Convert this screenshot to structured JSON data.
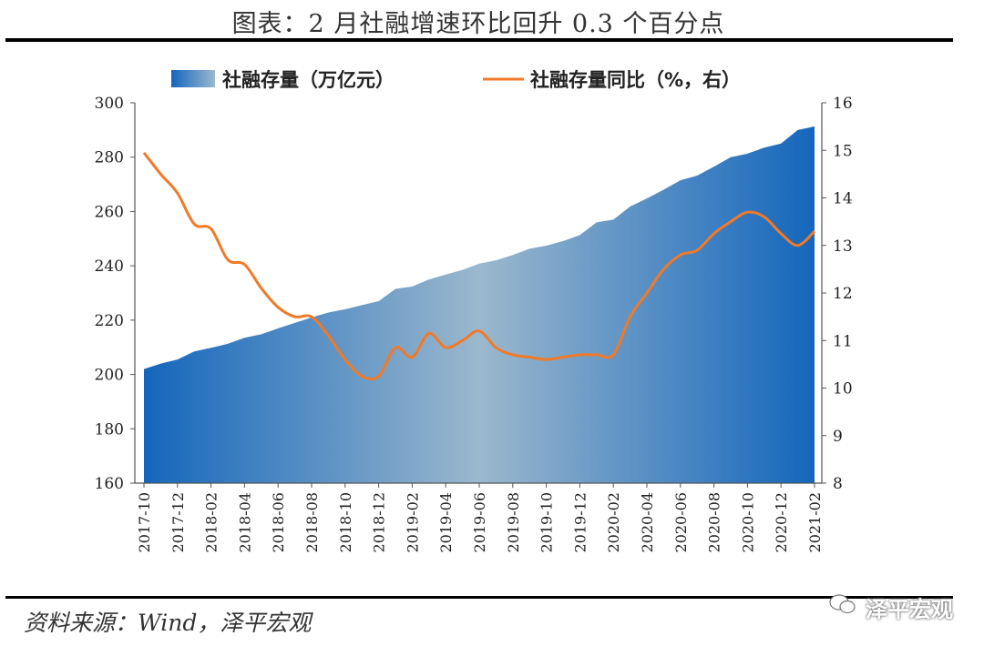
{
  "title": "图表：2 月社融增速环比回升 0.3 个百分点",
  "source": "资料来源：Wind，泽平宏观",
  "watermark": "泽平宏观",
  "chart_data": {
    "type": "area+line",
    "categories": [
      "2017-10",
      "2017-11",
      "2017-12",
      "2018-01",
      "2018-02",
      "2018-03",
      "2018-04",
      "2018-05",
      "2018-06",
      "2018-07",
      "2018-08",
      "2018-09",
      "2018-10",
      "2018-11",
      "2018-12",
      "2019-01",
      "2019-02",
      "2019-03",
      "2019-04",
      "2019-05",
      "2019-06",
      "2019-07",
      "2019-08",
      "2019-09",
      "2019-10",
      "2019-11",
      "2019-12",
      "2020-01",
      "2020-02",
      "2020-03",
      "2020-04",
      "2020-05",
      "2020-06",
      "2020-07",
      "2020-08",
      "2020-09",
      "2020-10",
      "2020-11",
      "2020-12",
      "2021-01",
      "2021-02"
    ],
    "x_tick_labels": [
      "2017-10",
      "2017-12",
      "2018-02",
      "2018-04",
      "2018-06",
      "2018-08",
      "2018-10",
      "2018-12",
      "2019-02",
      "2019-04",
      "2019-06",
      "2019-08",
      "2019-10",
      "2019-12",
      "2020-02",
      "2020-04",
      "2020-06",
      "2020-08",
      "2020-10",
      "2020-12",
      "2021-02"
    ],
    "series": [
      {
        "name": "社融存量（万亿元）",
        "axis": "left",
        "type": "area",
        "values": [
          202,
          204,
          205.5,
          208.5,
          209.8,
          211.3,
          213.5,
          214.8,
          217,
          219,
          221,
          222.8,
          224,
          225.5,
          227,
          231.5,
          232.4,
          235,
          236.8,
          238.5,
          240.8,
          242,
          244,
          246.3,
          247.4,
          249.1,
          251.3,
          256,
          257,
          261.8,
          264.8,
          268,
          271.5,
          273.2,
          276.5,
          280,
          281.3,
          283.5,
          285,
          290,
          291.3
        ]
      },
      {
        "name": "社融存量同比（%，右）",
        "axis": "right",
        "type": "line",
        "color": "#F07A28",
        "values": [
          14.95,
          14.5,
          14.1,
          13.45,
          13.35,
          12.7,
          12.6,
          12.1,
          11.7,
          11.5,
          11.5,
          11.1,
          10.6,
          10.25,
          10.25,
          10.85,
          10.65,
          11.15,
          10.85,
          11.0,
          11.2,
          10.85,
          10.7,
          10.65,
          10.6,
          10.65,
          10.7,
          10.7,
          10.7,
          11.5,
          12.0,
          12.5,
          12.8,
          12.9,
          13.25,
          13.5,
          13.7,
          13.6,
          13.25,
          13.0,
          13.3
        ]
      }
    ],
    "y_left": {
      "min": 160,
      "max": 300,
      "ticks": [
        160,
        180,
        200,
        220,
        240,
        260,
        280,
        300
      ]
    },
    "y_right": {
      "min": 8,
      "max": 16,
      "ticks": [
        8,
        9,
        10,
        11,
        12,
        13,
        14,
        15,
        16
      ]
    },
    "legend_position": "top",
    "grid": false
  }
}
